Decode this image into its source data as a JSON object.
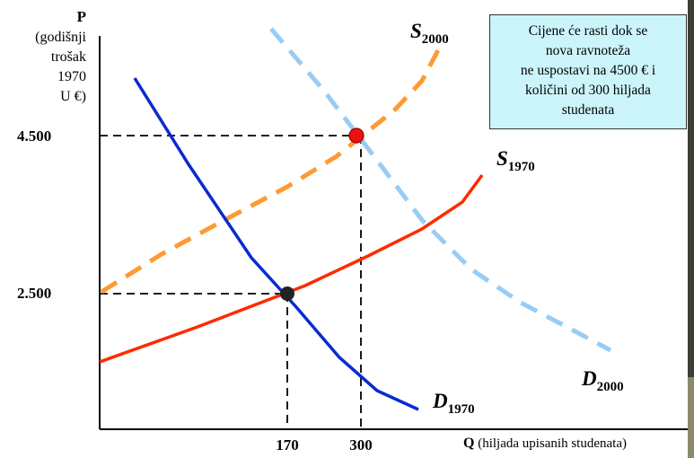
{
  "chart_data": {
    "type": "line",
    "y_axis": {
      "label_main": "P",
      "label_lines": [
        "(godišnji",
        "trošak",
        "1970",
        "U €)"
      ],
      "ticks": [
        {
          "value": 4500,
          "label": "4.500"
        },
        {
          "value": 2500,
          "label": "2.500"
        }
      ]
    },
    "x_axis": {
      "label_main": "Q",
      "label_rest": " (hiljada upisanih studenata)",
      "ticks": [
        {
          "value": 170,
          "label": "170"
        },
        {
          "value": 300,
          "label": "300"
        }
      ]
    },
    "series": [
      {
        "name": "D1970",
        "name_main": "D",
        "name_sub": "1970",
        "color": "#0a2bd0",
        "style": "solid"
      },
      {
        "name": "S1970",
        "name_main": "S",
        "name_sub": "1970",
        "color": "#ff2a00",
        "style": "solid"
      },
      {
        "name": "S2000",
        "name_main": "S",
        "name_sub": "2000",
        "color": "#ff9933",
        "style": "dashed"
      },
      {
        "name": "D2000",
        "name_main": "D",
        "name_sub": "2000",
        "color": "#99ccf5",
        "style": "dashed"
      }
    ],
    "equilibria": [
      {
        "x": 170,
        "y": 2500,
        "color": "#222222"
      },
      {
        "x": 300,
        "y": 4500,
        "color": "#ee1111"
      }
    ],
    "annotation": [
      "Cijene će rasti dok se",
      "nova ravnoteža",
      "ne uspostavi na 4500 € i",
      "količini od 300 hiljada",
      "studenata"
    ]
  }
}
